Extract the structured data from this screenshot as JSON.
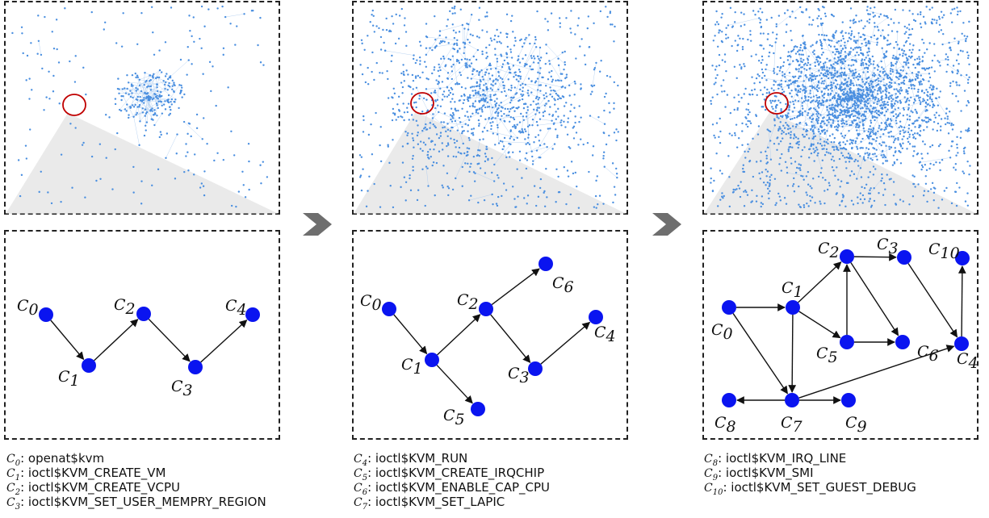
{
  "colors": {
    "node": "#0a14f0",
    "edge": "#111111",
    "net_node": "#4a8fe0",
    "net_edge": "#a9c9ee",
    "highlight": "#c00000",
    "zoom": "#d8d8d8",
    "step_arrow": "#6e6e6e"
  },
  "stages": [
    {
      "nodes": [
        {
          "id": "0",
          "label": "C",
          "sub": "0"
        },
        {
          "id": "1",
          "label": "C",
          "sub": "1"
        },
        {
          "id": "2",
          "label": "C",
          "sub": "2"
        },
        {
          "id": "3",
          "label": "C",
          "sub": "3"
        },
        {
          "id": "4",
          "label": "C",
          "sub": "4"
        }
      ],
      "edges": [
        [
          "0",
          "1"
        ],
        [
          "1",
          "2"
        ],
        [
          "2",
          "3"
        ],
        [
          "3",
          "4"
        ]
      ],
      "legend": [
        {
          "c": "C",
          "sub": "0",
          "text": "openat$kvm"
        },
        {
          "c": "C",
          "sub": "1",
          "text": "ioctl$KVM_CREATE_VM"
        },
        {
          "c": "C",
          "sub": "2",
          "text": "ioctl$KVM_CREATE_VCPU"
        },
        {
          "c": "C",
          "sub": "3",
          "text": "ioctl$KVM_SET_USER_MEMPRY_REGION"
        }
      ]
    },
    {
      "nodes": [
        {
          "id": "0",
          "label": "C",
          "sub": "0"
        },
        {
          "id": "1",
          "label": "C",
          "sub": "1"
        },
        {
          "id": "2",
          "label": "C",
          "sub": "2"
        },
        {
          "id": "3",
          "label": "C",
          "sub": "3"
        },
        {
          "id": "4",
          "label": "C",
          "sub": "4"
        },
        {
          "id": "5",
          "label": "C",
          "sub": "5"
        },
        {
          "id": "6",
          "label": "C",
          "sub": "6"
        }
      ],
      "edges": [
        [
          "0",
          "1"
        ],
        [
          "1",
          "2"
        ],
        [
          "2",
          "6"
        ],
        [
          "2",
          "3"
        ],
        [
          "3",
          "4"
        ],
        [
          "1",
          "5"
        ]
      ],
      "legend": [
        {
          "c": "C",
          "sub": "4",
          "text": "ioctl$KVM_RUN"
        },
        {
          "c": "C",
          "sub": "5",
          "text": "ioctl$KVM_CREATE_IRQCHIP"
        },
        {
          "c": "C",
          "sub": "6",
          "text": "ioctl$KVM_ENABLE_CAP_CPU"
        },
        {
          "c": "C",
          "sub": "7",
          "text": "ioctl$KVM_SET_LAPIC"
        }
      ]
    },
    {
      "nodes": [
        {
          "id": "0",
          "label": "C",
          "sub": "0"
        },
        {
          "id": "1",
          "label": "C",
          "sub": "1"
        },
        {
          "id": "2",
          "label": "C",
          "sub": "2"
        },
        {
          "id": "3",
          "label": "C",
          "sub": "3"
        },
        {
          "id": "4",
          "label": "C",
          "sub": "4"
        },
        {
          "id": "5",
          "label": "C",
          "sub": "5"
        },
        {
          "id": "6",
          "label": "C",
          "sub": "6"
        },
        {
          "id": "7",
          "label": "C",
          "sub": "7"
        },
        {
          "id": "8",
          "label": "C",
          "sub": "8"
        },
        {
          "id": "9",
          "label": "C",
          "sub": "9"
        },
        {
          "id": "10",
          "label": "C",
          "sub": "10"
        }
      ],
      "edges": [
        [
          "0",
          "1"
        ],
        [
          "0",
          "7"
        ],
        [
          "1",
          "2"
        ],
        [
          "1",
          "5"
        ],
        [
          "1",
          "7"
        ],
        [
          "2",
          "3"
        ],
        [
          "2",
          "6"
        ],
        [
          "5",
          "2"
        ],
        [
          "5",
          "6"
        ],
        [
          "3",
          "4"
        ],
        [
          "4",
          "10"
        ],
        [
          "7",
          "4"
        ],
        [
          "7",
          "8"
        ],
        [
          "7",
          "9"
        ]
      ],
      "legend": [
        {
          "c": "C",
          "sub": "8",
          "text": "ioctl$KVM_IRQ_LINE"
        },
        {
          "c": "C",
          "sub": "9",
          "text": "ioctl$KVM_SMI"
        },
        {
          "c": "C",
          "sub": "10",
          "text": "ioctl$KVM_SET_GUEST_DEBUG"
        }
      ]
    }
  ]
}
